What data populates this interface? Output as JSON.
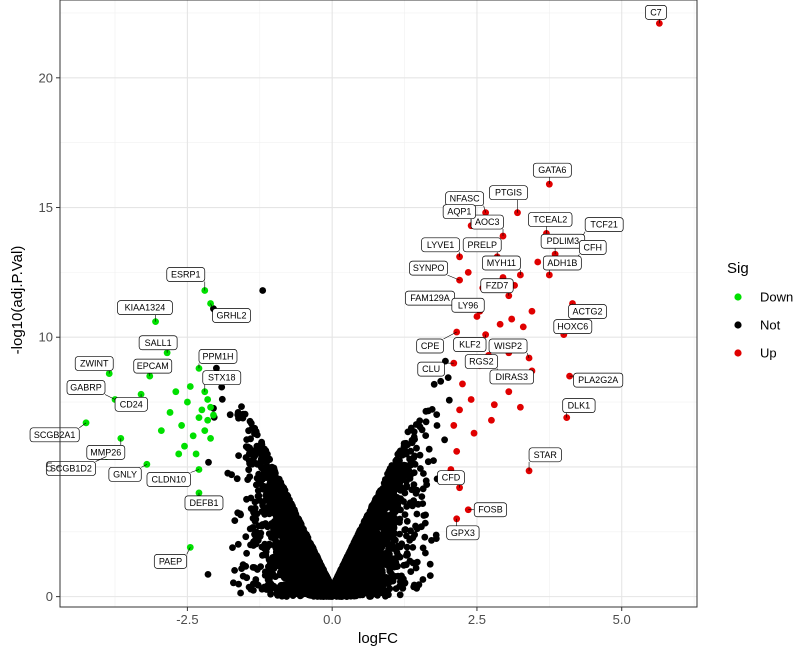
{
  "chart_data": {
    "type": "scatter",
    "title": "",
    "xlabel": "logFC",
    "ylabel": "-log10(adj.P.Val)",
    "xlim": [
      -4.7,
      6.3
    ],
    "ylim": [
      -0.4,
      23.0
    ],
    "x_ticks": [
      -2.5,
      0.0,
      2.5,
      5.0
    ],
    "y_ticks": [
      0,
      5,
      10,
      15,
      20
    ],
    "x_tick_labels": [
      "-2.5",
      "0.0",
      "2.5",
      "5.0"
    ],
    "y_tick_labels": [
      "0",
      "5",
      "10",
      "15",
      "20"
    ],
    "grid": true,
    "legend": {
      "title": "Sig",
      "placement": "right",
      "entries": [
        {
          "label": "Down",
          "color": "#00e000"
        },
        {
          "label": "Not",
          "color": "#000000"
        },
        {
          "label": "Up",
          "color": "#e00000"
        }
      ]
    },
    "colors": {
      "Down": "#00e000",
      "Not": "#000000",
      "Up": "#e00000"
    },
    "background_cloud": {
      "description_free": true,
      "count": 5200,
      "xrange": [
        -2.3,
        2.3
      ]
    },
    "labeled_points": [
      {
        "gene": "C7",
        "x": 5.65,
        "y": 22.1,
        "sig": "Up"
      },
      {
        "gene": "GATA6",
        "x": 3.75,
        "y": 15.9,
        "sig": "Up"
      },
      {
        "gene": "NFASC",
        "x": 2.65,
        "y": 14.8,
        "sig": "Up"
      },
      {
        "gene": "PTGIS",
        "x": 3.2,
        "y": 14.8,
        "sig": "Up"
      },
      {
        "gene": "AOC3",
        "x": 2.95,
        "y": 13.9,
        "sig": "Up"
      },
      {
        "gene": "TCEAL2",
        "x": 3.7,
        "y": 14.0,
        "sig": "Up"
      },
      {
        "gene": "AQP1",
        "x": 2.4,
        "y": 14.3,
        "sig": "Up"
      },
      {
        "gene": "TCF21",
        "x": 4.3,
        "y": 13.8,
        "sig": "Up"
      },
      {
        "gene": "PRELP",
        "x": 2.85,
        "y": 13.1,
        "sig": "Up"
      },
      {
        "gene": "PDLIM3",
        "x": 3.85,
        "y": 13.2,
        "sig": "Up"
      },
      {
        "gene": "CFH",
        "x": 4.2,
        "y": 13.0,
        "sig": "Up"
      },
      {
        "gene": "LYVE1",
        "x": 2.2,
        "y": 13.1,
        "sig": "Up"
      },
      {
        "gene": "MYH11",
        "x": 3.25,
        "y": 12.4,
        "sig": "Up"
      },
      {
        "gene": "ADH1B",
        "x": 3.75,
        "y": 12.4,
        "sig": "Up"
      },
      {
        "gene": "SYNPO",
        "x": 2.2,
        "y": 12.2,
        "sig": "Up"
      },
      {
        "gene": "FZD7",
        "x": 3.05,
        "y": 11.6,
        "sig": "Up"
      },
      {
        "gene": "ACTG2",
        "x": 4.15,
        "y": 11.3,
        "sig": "Up"
      },
      {
        "gene": "FAM129A",
        "x": 2.3,
        "y": 11.2,
        "sig": "Up"
      },
      {
        "gene": "LY96",
        "x": 2.55,
        "y": 11.0,
        "sig": "Up"
      },
      {
        "gene": "KLF2",
        "x": 2.65,
        "y": 10.1,
        "sig": "Up"
      },
      {
        "gene": "HOXC6",
        "x": 4.0,
        "y": 10.1,
        "sig": "Up"
      },
      {
        "gene": "CPE",
        "x": 2.15,
        "y": 10.2,
        "sig": "Up"
      },
      {
        "gene": "CLU",
        "x": 2.1,
        "y": 9.0,
        "sig": "Up"
      },
      {
        "gene": "WISP2",
        "x": 3.4,
        "y": 9.2,
        "sig": "Up"
      },
      {
        "gene": "RGS2",
        "x": 2.85,
        "y": 8.6,
        "sig": "Up"
      },
      {
        "gene": "DIRAS3",
        "x": 3.45,
        "y": 8.7,
        "sig": "Up"
      },
      {
        "gene": "PLA2G2A",
        "x": 4.1,
        "y": 8.5,
        "sig": "Up"
      },
      {
        "gene": "DLK1",
        "x": 4.05,
        "y": 6.9,
        "sig": "Up"
      },
      {
        "gene": "STAR",
        "x": 3.4,
        "y": 4.85,
        "sig": "Up"
      },
      {
        "gene": "CFD",
        "x": 2.2,
        "y": 4.2,
        "sig": "Up"
      },
      {
        "gene": "FOSB",
        "x": 2.35,
        "y": 3.35,
        "sig": "Up"
      },
      {
        "gene": "GPX3",
        "x": 2.15,
        "y": 3.0,
        "sig": "Up"
      },
      {
        "gene": "ESRP1",
        "x": -2.2,
        "y": 11.8,
        "sig": "Down"
      },
      {
        "gene": "GRHL2",
        "x": -2.1,
        "y": 11.3,
        "sig": "Down"
      },
      {
        "gene": "KIAA1324",
        "x": -3.05,
        "y": 10.6,
        "sig": "Down"
      },
      {
        "gene": "SALL1",
        "x": -2.85,
        "y": 9.4,
        "sig": "Down"
      },
      {
        "gene": "PPM1H",
        "x": -2.3,
        "y": 8.8,
        "sig": "Down"
      },
      {
        "gene": "ZWINT",
        "x": -3.85,
        "y": 8.6,
        "sig": "Down"
      },
      {
        "gene": "EPCAM",
        "x": -3.15,
        "y": 8.5,
        "sig": "Down"
      },
      {
        "gene": "GABRP",
        "x": -3.75,
        "y": 7.6,
        "sig": "Down"
      },
      {
        "gene": "STX18",
        "x": -2.2,
        "y": 7.9,
        "sig": "Down"
      },
      {
        "gene": "CD24",
        "x": -3.3,
        "y": 7.8,
        "sig": "Down"
      },
      {
        "gene": "SCGB2A1",
        "x": -4.25,
        "y": 6.7,
        "sig": "Down"
      },
      {
        "gene": "MMP26",
        "x": -3.65,
        "y": 6.1,
        "sig": "Down"
      },
      {
        "gene": "SCGB1D2",
        "x": -3.9,
        "y": 5.4,
        "sig": "Down"
      },
      {
        "gene": "GNLY",
        "x": -3.2,
        "y": 5.1,
        "sig": "Down"
      },
      {
        "gene": "CLDN10",
        "x": -2.3,
        "y": 4.9,
        "sig": "Down"
      },
      {
        "gene": "DEFB1",
        "x": -2.3,
        "y": 4.0,
        "sig": "Down"
      },
      {
        "gene": "PAEP",
        "x": -2.45,
        "y": 1.9,
        "sig": "Down"
      }
    ],
    "extra_points": [
      {
        "x": -1.2,
        "y": 11.8,
        "sig": "Not"
      },
      {
        "x": -2.05,
        "y": 11.1,
        "sig": "Not"
      },
      {
        "x": -2.05,
        "y": 7.0,
        "sig": "Down"
      },
      {
        "x": -2.15,
        "y": 6.8,
        "sig": "Down"
      },
      {
        "x": -2.25,
        "y": 7.2,
        "sig": "Down"
      },
      {
        "x": -2.4,
        "y": 6.2,
        "sig": "Down"
      },
      {
        "x": -2.5,
        "y": 7.5,
        "sig": "Down"
      },
      {
        "x": -2.6,
        "y": 6.6,
        "sig": "Down"
      },
      {
        "x": -2.7,
        "y": 7.9,
        "sig": "Down"
      },
      {
        "x": -2.55,
        "y": 5.8,
        "sig": "Down"
      },
      {
        "x": -2.35,
        "y": 5.5,
        "sig": "Down"
      },
      {
        "x": -2.1,
        "y": 6.1,
        "sig": "Down"
      },
      {
        "x": -2.2,
        "y": 6.4,
        "sig": "Down"
      },
      {
        "x": -2.8,
        "y": 7.1,
        "sig": "Down"
      },
      {
        "x": -2.45,
        "y": 8.1,
        "sig": "Down"
      },
      {
        "x": -2.15,
        "y": 7.6,
        "sig": "Down"
      },
      {
        "x": -2.3,
        "y": 6.9,
        "sig": "Down"
      },
      {
        "x": -2.65,
        "y": 5.5,
        "sig": "Down"
      },
      {
        "x": -2.95,
        "y": 6.4,
        "sig": "Down"
      },
      {
        "x": -2.1,
        "y": 7.3,
        "sig": "Down"
      },
      {
        "x": 2.1,
        "y": 6.6,
        "sig": "Up"
      },
      {
        "x": 2.2,
        "y": 7.2,
        "sig": "Up"
      },
      {
        "x": 2.25,
        "y": 8.2,
        "sig": "Up"
      },
      {
        "x": 2.4,
        "y": 7.6,
        "sig": "Up"
      },
      {
        "x": 2.55,
        "y": 8.9,
        "sig": "Up"
      },
      {
        "x": 2.7,
        "y": 9.3,
        "sig": "Up"
      },
      {
        "x": 2.9,
        "y": 10.5,
        "sig": "Up"
      },
      {
        "x": 3.1,
        "y": 10.7,
        "sig": "Up"
      },
      {
        "x": 2.45,
        "y": 6.3,
        "sig": "Up"
      },
      {
        "x": 2.8,
        "y": 7.4,
        "sig": "Up"
      },
      {
        "x": 3.05,
        "y": 7.9,
        "sig": "Up"
      },
      {
        "x": 3.25,
        "y": 7.3,
        "sig": "Up"
      },
      {
        "x": 2.3,
        "y": 9.7,
        "sig": "Up"
      },
      {
        "x": 2.6,
        "y": 11.9,
        "sig": "Up"
      },
      {
        "x": 2.95,
        "y": 12.3,
        "sig": "Up"
      },
      {
        "x": 3.45,
        "y": 11.0,
        "sig": "Up"
      },
      {
        "x": 3.55,
        "y": 12.9,
        "sig": "Up"
      },
      {
        "x": 3.05,
        "y": 9.4,
        "sig": "Up"
      },
      {
        "x": 2.15,
        "y": 5.6,
        "sig": "Up"
      },
      {
        "x": 2.5,
        "y": 10.8,
        "sig": "Up"
      },
      {
        "x": 3.3,
        "y": 10.4,
        "sig": "Up"
      },
      {
        "x": 2.35,
        "y": 12.5,
        "sig": "Up"
      },
      {
        "x": 3.15,
        "y": 12.0,
        "sig": "Up"
      },
      {
        "x": 2.05,
        "y": 4.9,
        "sig": "Up"
      },
      {
        "x": 2.75,
        "y": 6.8,
        "sig": "Up"
      }
    ]
  }
}
